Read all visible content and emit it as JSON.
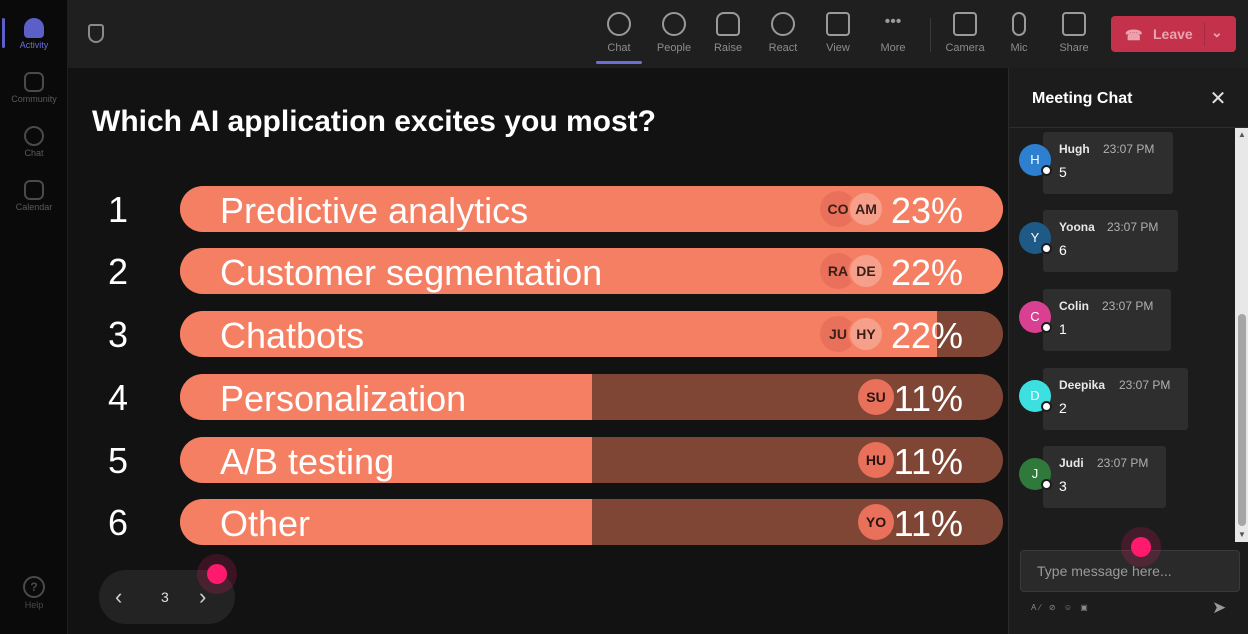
{
  "rail": {
    "items": [
      {
        "label": "Activity",
        "active": true
      },
      {
        "label": "Community"
      },
      {
        "label": "Chat"
      },
      {
        "label": "Calendar"
      }
    ],
    "help": "Help"
  },
  "toolbar": {
    "buttons": [
      {
        "label": "Chat",
        "icon": "chat-icon",
        "active": true
      },
      {
        "label": "People",
        "icon": "people-icon"
      },
      {
        "label": "Raise",
        "icon": "hand-icon"
      },
      {
        "label": "React",
        "icon": "smile-icon"
      },
      {
        "label": "View",
        "icon": "grid-icon"
      },
      {
        "label": "More",
        "icon": "more-icon"
      },
      {
        "label": "Camera",
        "icon": "camera-off-icon"
      },
      {
        "label": "Mic",
        "icon": "mic-icon"
      },
      {
        "label": "Share",
        "icon": "share-icon"
      }
    ],
    "leave_label": "Leave",
    "leave_color": "#c4314b"
  },
  "poll": {
    "question": "Which AI application excites you most?",
    "bar_color": "#f47f63",
    "track_color": "#7f4636",
    "options": [
      {
        "rank": "1",
        "label": "Predictive analytics",
        "percent": "23%",
        "share": 1.0,
        "voters": [
          "CO",
          "AM"
        ]
      },
      {
        "rank": "2",
        "label": "Customer segmentation",
        "percent": "22%",
        "share": 1.0,
        "voters": [
          "RA",
          "DE"
        ]
      },
      {
        "rank": "3",
        "label": "Chatbots",
        "percent": "22%",
        "share": 0.92,
        "voters": [
          "JU",
          "HY"
        ]
      },
      {
        "rank": "4",
        "label": "Personalization",
        "percent": "11%",
        "share": 0.5,
        "voters": [
          "SU"
        ]
      },
      {
        "rank": "5",
        "label": "A/B testing",
        "percent": "11%",
        "share": 0.5,
        "voters": [
          "HU"
        ]
      },
      {
        "rank": "6",
        "label": "Other",
        "percent": "11%",
        "share": 0.5,
        "voters": [
          "YO"
        ]
      }
    ],
    "page": "3"
  },
  "chat": {
    "title": "Meeting Chat",
    "messages": [
      {
        "initial": "H",
        "name": "Hugh",
        "time": "23:07 PM",
        "text": "5",
        "color": "#2d7fd0"
      },
      {
        "initial": "Y",
        "name": "Yoona",
        "time": "23:07 PM",
        "text": "6",
        "color": "#1f5a86"
      },
      {
        "initial": "C",
        "name": "Colin",
        "time": "23:07 PM",
        "text": "1",
        "color": "#d94092"
      },
      {
        "initial": "D",
        "name": "Deepika",
        "time": "23:07 PM",
        "text": "2",
        "color": "#3de0e0"
      },
      {
        "initial": "J",
        "name": "Judi",
        "time": "23:07 PM",
        "text": "3",
        "color": "#2f7a3a"
      }
    ],
    "input_placeholder": "Type message here..."
  }
}
